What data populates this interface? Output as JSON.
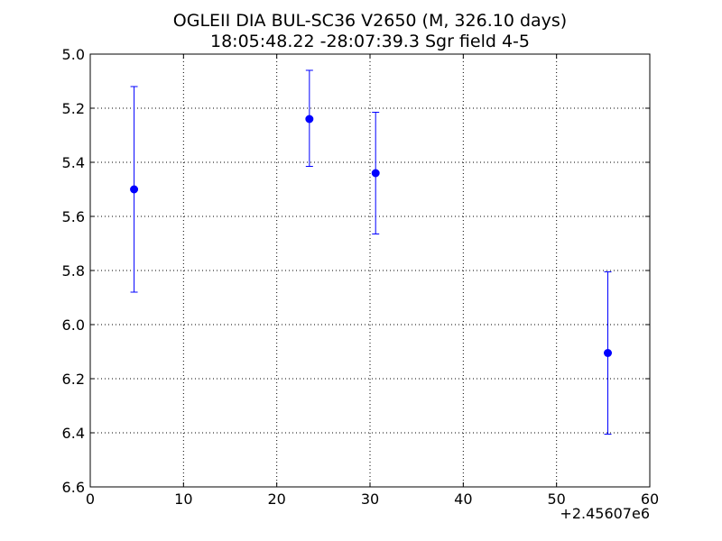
{
  "chart_data": {
    "type": "scatter",
    "title_line1": "OGLEII DIA BUL-SC36 V2650 (M, 326.10 days)",
    "title_line2": "18:05:48.22 -28:07:39.3 Sgr field 4-5",
    "xlabel": "",
    "ylabel": "",
    "x_offset_label": "+2.45607e6",
    "xlim": [
      0,
      60
    ],
    "ylim": [
      5.0,
      6.6
    ],
    "y_inverted": true,
    "grid": true,
    "x_ticks": [
      0,
      10,
      20,
      30,
      40,
      50,
      60
    ],
    "x_tick_labels": [
      "0",
      "10",
      "20",
      "30",
      "40",
      "50",
      "60"
    ],
    "y_ticks": [
      5.0,
      5.2,
      5.4,
      5.6,
      5.8,
      6.0,
      6.2,
      6.4,
      6.6
    ],
    "y_tick_labels": [
      "5.0",
      "5.2",
      "5.4",
      "5.6",
      "5.8",
      "6.0",
      "6.2",
      "6.4",
      "6.6"
    ],
    "series": [
      {
        "color": "#0000ff",
        "points": [
          {
            "x": 4.7,
            "y": 5.5,
            "err_low": 5.12,
            "err_high": 5.88
          },
          {
            "x": 23.5,
            "y": 5.24,
            "err_low": 5.06,
            "err_high": 5.415
          },
          {
            "x": 30.6,
            "y": 5.44,
            "err_low": 5.215,
            "err_high": 5.665
          },
          {
            "x": 55.5,
            "y": 6.105,
            "err_low": 5.805,
            "err_high": 6.405
          }
        ]
      }
    ]
  }
}
